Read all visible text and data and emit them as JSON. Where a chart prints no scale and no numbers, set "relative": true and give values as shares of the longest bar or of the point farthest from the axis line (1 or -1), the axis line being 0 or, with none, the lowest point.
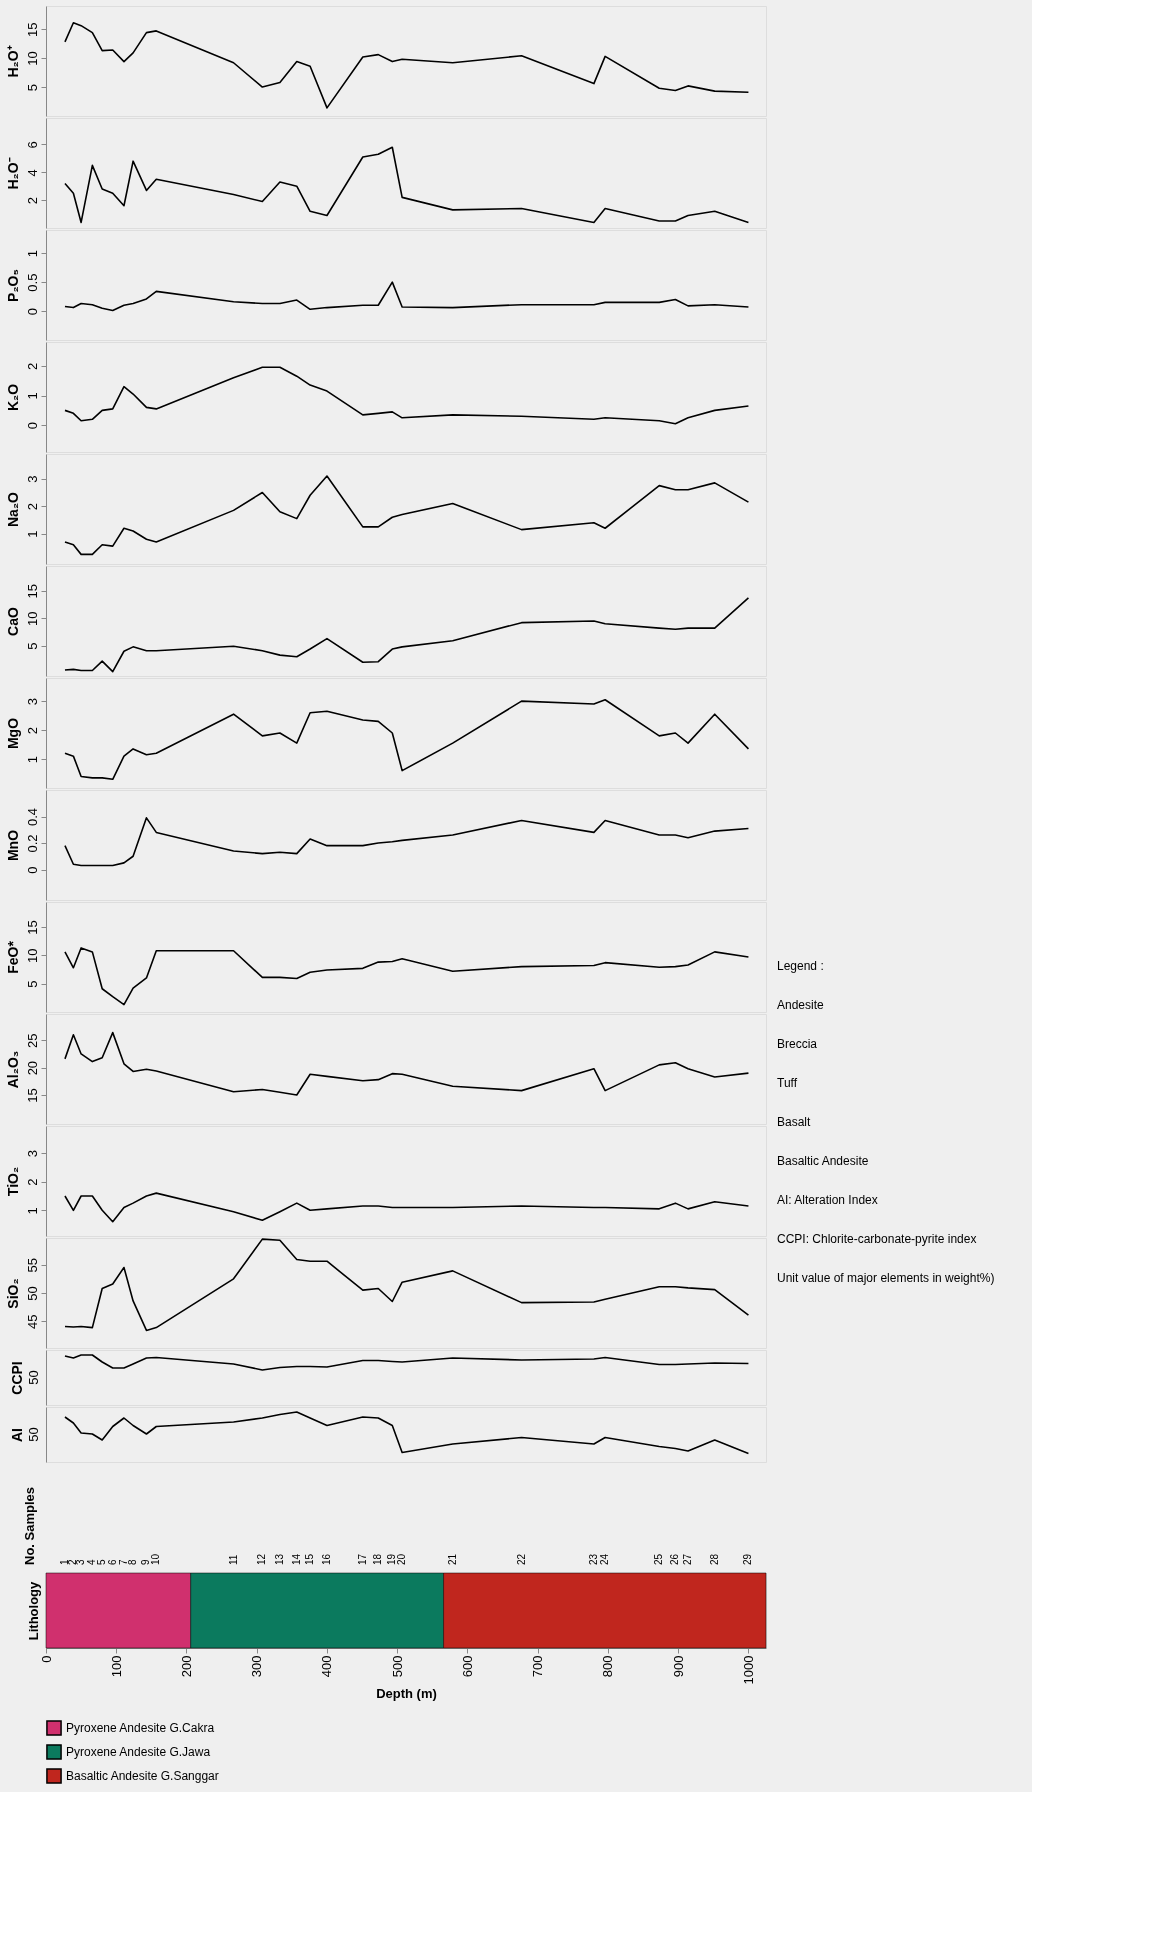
{
  "chart_data": [
    {
      "type": "line",
      "ylabel": "H₂O⁺",
      "xlim": [
        0,
        1025
      ],
      "ylim": [
        0,
        19
      ],
      "yticks": [
        5,
        10,
        15
      ],
      "tick_labels": "y",
      "grid": false,
      "x": [
        27,
        39,
        50,
        66,
        80,
        95,
        111,
        124,
        143,
        157,
        267,
        308,
        333,
        357,
        376,
        400,
        451,
        473,
        493,
        507,
        579,
        677,
        780,
        796,
        873,
        896,
        914,
        952,
        1000
      ],
      "series": [
        {
          "color": "#000000",
          "values": [
            12.8,
            16.1,
            15.6,
            14.4,
            11.3,
            11.4,
            9.4,
            10.9,
            14.4,
            14.7,
            9.2,
            5,
            5.8,
            9.4,
            8.6,
            1.4,
            10.2,
            10.6,
            9.4,
            9.8,
            9.2,
            10.4,
            5.6,
            10.3,
            4.8,
            4.4,
            5.2,
            4.3,
            4.1
          ]
        }
      ]
    },
    {
      "type": "line",
      "ylabel": "H₂O⁻",
      "xlim": [
        0,
        1025
      ],
      "ylim": [
        0,
        7.9
      ],
      "yticks": [
        2,
        4,
        6
      ],
      "tick_labels": "y",
      "grid": false,
      "x": [
        27,
        39,
        50,
        66,
        80,
        95,
        111,
        124,
        143,
        157,
        267,
        308,
        333,
        357,
        376,
        400,
        451,
        473,
        493,
        507,
        579,
        677,
        780,
        796,
        873,
        896,
        914,
        952,
        1000
      ],
      "series": [
        {
          "color": "#000000",
          "values": [
            3.2,
            2.5,
            0.4,
            4.5,
            2.8,
            2.5,
            1.6,
            4.8,
            2.7,
            3.5,
            2.4,
            1.9,
            3.3,
            3.0,
            1.2,
            0.9,
            5.1,
            5.3,
            5.8,
            2.2,
            1.3,
            1.4,
            0.4,
            1.4,
            0.5,
            0.5,
            0.9,
            1.2,
            0.4
          ]
        }
      ]
    },
    {
      "type": "line",
      "ylabel": "P₂O₅",
      "xlim": [
        0,
        1025
      ],
      "ylim": [
        -0.5,
        1.4
      ],
      "yticks": [
        0,
        0.5,
        1
      ],
      "tick_labels": "y",
      "grid": false,
      "x": [
        27,
        39,
        50,
        66,
        80,
        95,
        111,
        124,
        143,
        157,
        267,
        308,
        333,
        357,
        376,
        400,
        451,
        473,
        493,
        507,
        579,
        677,
        780,
        796,
        873,
        896,
        914,
        952,
        1000
      ],
      "series": [
        {
          "color": "#000000",
          "values": [
            0.08,
            0.06,
            0.13,
            0.11,
            0.05,
            0.01,
            0.1,
            0.13,
            0.21,
            0.34,
            0.16,
            0.13,
            0.13,
            0.19,
            0.03,
            0.06,
            0.1,
            0.1,
            0.5,
            0.07,
            0.06,
            0.11,
            0.11,
            0.15,
            0.15,
            0.2,
            0.09,
            0.11,
            0.07
          ]
        }
      ]
    },
    {
      "type": "line",
      "ylabel": "K₂O",
      "xlim": [
        0,
        1025
      ],
      "ylim": [
        -0.9,
        2.8
      ],
      "yticks": [
        0,
        1,
        2
      ],
      "tick_labels": "y",
      "grid": false,
      "x": [
        27,
        39,
        50,
        66,
        80,
        95,
        111,
        124,
        143,
        157,
        267,
        308,
        333,
        357,
        376,
        400,
        451,
        473,
        493,
        507,
        579,
        677,
        780,
        796,
        873,
        896,
        914,
        952,
        1000
      ],
      "series": [
        {
          "color": "#000000",
          "values": [
            0.5,
            0.4,
            0.15,
            0.2,
            0.5,
            0.55,
            1.3,
            1.05,
            0.6,
            0.55,
            1.6,
            1.95,
            1.95,
            1.65,
            1.35,
            1.15,
            0.35,
            0.4,
            0.45,
            0.25,
            0.35,
            0.3,
            0.2,
            0.25,
            0.15,
            0.05,
            0.25,
            0.5,
            0.65
          ]
        }
      ]
    },
    {
      "type": "line",
      "ylabel": "Na₂O",
      "xlim": [
        0,
        1025
      ],
      "ylim": [
        -0.1,
        3.9
      ],
      "yticks": [
        1,
        2,
        3
      ],
      "tick_labels": "y",
      "grid": false,
      "x": [
        27,
        39,
        50,
        66,
        80,
        95,
        111,
        124,
        143,
        157,
        267,
        308,
        333,
        357,
        376,
        400,
        451,
        473,
        493,
        507,
        579,
        677,
        780,
        796,
        873,
        896,
        914,
        952,
        1000
      ],
      "series": [
        {
          "color": "#000000",
          "values": [
            0.7,
            0.6,
            0.25,
            0.25,
            0.6,
            0.55,
            1.2,
            1.1,
            0.8,
            0.7,
            1.85,
            2.5,
            1.8,
            1.55,
            2.4,
            3.1,
            1.25,
            1.25,
            1.6,
            1.7,
            2.1,
            1.15,
            1.4,
            1.2,
            2.75,
            2.6,
            2.6,
            2.85,
            2.15
          ]
        }
      ]
    },
    {
      "type": "line",
      "ylabel": "CaO",
      "xlim": [
        0,
        1025
      ],
      "ylim": [
        -0.5,
        19.5
      ],
      "yticks": [
        5,
        10,
        15
      ],
      "tick_labels": "y",
      "grid": false,
      "x": [
        27,
        39,
        50,
        66,
        80,
        95,
        111,
        124,
        143,
        157,
        267,
        308,
        333,
        357,
        376,
        400,
        451,
        473,
        493,
        507,
        579,
        677,
        780,
        796,
        873,
        896,
        914,
        952,
        1000
      ],
      "series": [
        {
          "color": "#000000",
          "values": [
            0.6,
            0.7,
            0.5,
            0.5,
            2.2,
            0.3,
            4,
            4.8,
            4.1,
            4.1,
            4.9,
            4.1,
            3.3,
            3,
            4.4,
            6.3,
            2,
            2.1,
            4.4,
            4.8,
            5.9,
            9.2,
            9.5,
            9,
            8.2,
            8,
            8.2,
            8.2,
            13.7
          ]
        }
      ]
    },
    {
      "type": "line",
      "ylabel": "MgO",
      "xlim": [
        0,
        1025
      ],
      "ylim": [
        0,
        3.8
      ],
      "yticks": [
        1,
        2,
        3
      ],
      "tick_labels": "y",
      "grid": false,
      "x": [
        27,
        39,
        50,
        66,
        80,
        95,
        111,
        124,
        143,
        157,
        267,
        308,
        333,
        357,
        376,
        400,
        451,
        473,
        493,
        507,
        579,
        677,
        780,
        796,
        873,
        896,
        914,
        952,
        1000
      ],
      "series": [
        {
          "color": "#000000",
          "values": [
            1.2,
            1.1,
            0.4,
            0.35,
            0.35,
            0.3,
            1.1,
            1.35,
            1.15,
            1.2,
            2.55,
            1.8,
            1.9,
            1.55,
            2.6,
            2.65,
            2.35,
            2.3,
            1.9,
            0.6,
            1.55,
            3,
            2.9,
            3.05,
            1.8,
            1.9,
            1.55,
            2.55,
            1.35
          ]
        }
      ]
    },
    {
      "type": "line",
      "ylabel": "MnO",
      "xlim": [
        0,
        1025
      ],
      "ylim": [
        -0.23,
        0.6
      ],
      "yticks": [
        0,
        0.2,
        0.4
      ],
      "tick_labels": "y",
      "grid": false,
      "x": [
        27,
        39,
        50,
        66,
        80,
        95,
        111,
        124,
        143,
        157,
        267,
        308,
        333,
        357,
        376,
        400,
        451,
        473,
        493,
        507,
        579,
        677,
        780,
        796,
        873,
        896,
        914,
        952,
        1000
      ],
      "series": [
        {
          "color": "#000000",
          "values": [
            0.18,
            0.04,
            0.03,
            0.03,
            0.03,
            0.03,
            0.05,
            0.1,
            0.39,
            0.28,
            0.14,
            0.12,
            0.13,
            0.12,
            0.23,
            0.18,
            0.18,
            0.2,
            0.21,
            0.22,
            0.26,
            0.37,
            0.28,
            0.37,
            0.26,
            0.26,
            0.24,
            0.29,
            0.31
          ]
        }
      ]
    },
    {
      "type": "line",
      "ylabel": "FeO*",
      "xlim": [
        0,
        1025
      ],
      "ylim": [
        0,
        19.4
      ],
      "yticks": [
        5,
        10,
        15
      ],
      "tick_labels": "y",
      "grid": false,
      "x": [
        27,
        39,
        50,
        66,
        80,
        95,
        111,
        124,
        143,
        157,
        267,
        308,
        333,
        357,
        376,
        400,
        451,
        473,
        493,
        507,
        579,
        677,
        780,
        796,
        873,
        896,
        914,
        952,
        1000
      ],
      "series": [
        {
          "color": "#000000",
          "values": [
            10.6,
            7.8,
            11.3,
            10.6,
            4.1,
            2.7,
            1.3,
            4.2,
            6,
            10.8,
            10.8,
            6.1,
            6.1,
            5.9,
            7,
            7.4,
            7.7,
            8.8,
            8.9,
            9.4,
            7.2,
            8,
            8.2,
            8.7,
            7.9,
            8,
            8.3,
            10.6,
            9.7
          ]
        }
      ]
    },
    {
      "type": "line",
      "ylabel": "Al₂O₃",
      "xlim": [
        0,
        1025
      ],
      "ylim": [
        9.7,
        29.8
      ],
      "yticks": [
        15,
        20,
        25
      ],
      "tick_labels": "y",
      "grid": false,
      "x": [
        27,
        39,
        50,
        66,
        80,
        95,
        111,
        124,
        143,
        157,
        267,
        308,
        333,
        357,
        376,
        400,
        451,
        473,
        493,
        507,
        579,
        677,
        780,
        796,
        873,
        896,
        914,
        952,
        1000
      ],
      "series": [
        {
          "color": "#000000",
          "values": [
            21.6,
            26,
            22.5,
            21.1,
            21.8,
            26.4,
            20.7,
            19.3,
            19.7,
            19.4,
            15.6,
            16,
            15.5,
            15,
            18.8,
            18.4,
            17.6,
            17.8,
            18.9,
            18.8,
            16.6,
            15.8,
            19.8,
            15.8,
            20.5,
            20.9,
            19.8,
            18.3,
            19
          ]
        }
      ]
    },
    {
      "type": "line",
      "ylabel": "TiO₂",
      "xlim": [
        0,
        1025
      ],
      "ylim": [
        0.1,
        3.95
      ],
      "yticks": [
        1,
        2,
        3
      ],
      "tick_labels": "y",
      "grid": false,
      "x": [
        27,
        39,
        50,
        66,
        80,
        95,
        111,
        124,
        143,
        157,
        267,
        308,
        333,
        357,
        376,
        400,
        451,
        473,
        493,
        507,
        579,
        677,
        780,
        796,
        873,
        896,
        914,
        952,
        1000
      ],
      "series": [
        {
          "color": "#000000",
          "values": [
            1.5,
            1,
            1.5,
            1.5,
            1,
            0.6,
            1.1,
            1.25,
            1.5,
            1.6,
            0.95,
            0.65,
            0.95,
            1.25,
            1,
            1.05,
            1.15,
            1.15,
            1.1,
            1.1,
            1.1,
            1.15,
            1.1,
            1.1,
            1.05,
            1.25,
            1.05,
            1.3,
            1.15
          ]
        }
      ]
    },
    {
      "type": "line",
      "ylabel": "SiO₂",
      "xlim": [
        0,
        1025
      ],
      "ylim": [
        40.3,
        59.7
      ],
      "yticks": [
        45,
        50,
        55
      ],
      "tick_labels": "y",
      "grid": false,
      "x": [
        27,
        39,
        50,
        66,
        80,
        95,
        111,
        124,
        143,
        157,
        267,
        308,
        333,
        357,
        376,
        400,
        451,
        473,
        493,
        507,
        579,
        677,
        780,
        796,
        873,
        896,
        914,
        952,
        1000
      ],
      "series": [
        {
          "color": "#000000",
          "values": [
            44.1,
            44,
            44.1,
            43.9,
            50.8,
            51.6,
            54.5,
            48.6,
            43.4,
            43.9,
            52.5,
            59.5,
            59.3,
            55.9,
            55.6,
            55.6,
            50.5,
            50.8,
            48.5,
            51.9,
            53.9,
            48.3,
            48.4,
            48.9,
            51.1,
            51.1,
            50.9,
            50.6,
            46.1
          ]
        }
      ]
    },
    {
      "type": "line",
      "ylabel": "CCPI",
      "relative": true,
      "annotations": [
        "50"
      ],
      "xlim": [
        0,
        1025
      ],
      "tick_labels": "y",
      "grid": false,
      "x": [
        27,
        39,
        50,
        66,
        80,
        95,
        111,
        124,
        143,
        157,
        267,
        308,
        333,
        357,
        376,
        400,
        451,
        473,
        493,
        507,
        579,
        677,
        780,
        796,
        873,
        896,
        914,
        952,
        1000
      ],
      "series": [
        {
          "color": "#000000",
          "values": [
            0.98,
            0.94,
            1,
            1,
            0.86,
            0.74,
            0.74,
            0.82,
            0.94,
            0.95,
            0.82,
            0.7,
            0.75,
            0.77,
            0.77,
            0.76,
            0.89,
            0.89,
            0.87,
            0.86,
            0.94,
            0.9,
            0.92,
            0.95,
            0.81,
            0.81,
            0.82,
            0.84,
            0.83
          ]
        }
      ]
    },
    {
      "type": "line",
      "ylabel": "AI",
      "relative": true,
      "annotations": [
        "50"
      ],
      "xlim": [
        0,
        1025
      ],
      "tick_labels": "y",
      "grid": false,
      "x": [
        27,
        39,
        50,
        66,
        80,
        95,
        111,
        124,
        143,
        157,
        267,
        308,
        333,
        357,
        376,
        400,
        451,
        473,
        493,
        507,
        579,
        677,
        780,
        796,
        873,
        896,
        914,
        952,
        1000
      ],
      "series": [
        {
          "color": "#000000",
          "values": [
            0.9,
            0.78,
            0.58,
            0.56,
            0.44,
            0.71,
            0.88,
            0.73,
            0.56,
            0.71,
            0.8,
            0.88,
            0.95,
            1,
            0.88,
            0.73,
            0.9,
            0.88,
            0.73,
            0.19,
            0.36,
            0.49,
            0.36,
            0.49,
            0.31,
            0.27,
            0.22,
            0.44,
            0.17
          ]
        }
      ]
    },
    {
      "type": "bar",
      "orientation": "horizontal",
      "stacked": true,
      "ylabel": "Lithology",
      "xlabel": "Depth (m)",
      "categories": [
        null
      ],
      "xlim": [
        0,
        1025
      ],
      "xticks": [
        0,
        100,
        200,
        300,
        400,
        500,
        600,
        700,
        800,
        900,
        1000
      ],
      "annotations": [
        "No. Samples",
        "1",
        "2",
        "3",
        "4",
        "5",
        "6",
        "7",
        "8",
        "9",
        "10",
        "11",
        "12",
        "13",
        "14",
        "15",
        "16",
        "17",
        "18",
        "19",
        "20",
        "21",
        "22",
        "23",
        "24",
        "25",
        "26",
        "27",
        "28",
        "29",
        "Legend :",
        "Andesite",
        "Breccia",
        "Tuff",
        "Basalt",
        "Basaltic Andesite",
        "AI: Alteration Index",
        "CCPI: Chlorite-carbonate-pyrite index",
        "Unit value of major elements in weight%)"
      ],
      "grid": false,
      "legend": "bottom",
      "series": [
        {
          "name": "Pyroxene Andesite G.Cakra",
          "color": "#d0306e",
          "values": [
            206
          ]
        },
        {
          "name": "Pyroxene Andesite G.Jawa",
          "color": "#0b7a5e",
          "values": [
            360
          ]
        },
        {
          "name": "Basaltic Andesite G.Sanggar",
          "color": "#c0261e",
          "values": [
            459
          ]
        }
      ]
    }
  ]
}
